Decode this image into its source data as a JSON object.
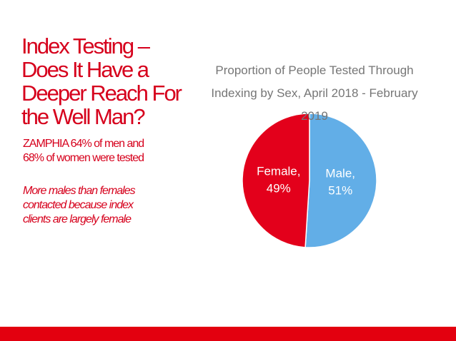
{
  "slide": {
    "title_lines": [
      "Index Testing –",
      "Does It Have a",
      "Deeper Reach For",
      "the Well Man?"
    ],
    "stat_lines": [
      "ZAMPHIA 64% of men and",
      "68% of women were tested"
    ],
    "note_lines": [
      "More males than females",
      "contacted because index",
      "clients are largely female"
    ]
  },
  "colors": {
    "accent": "#d6001c",
    "female": "#e3001b",
    "male": "#62aee7",
    "footer": "#e3000f"
  },
  "chart_data": {
    "type": "pie",
    "title": "Proportion of People Tested Through Indexing by Sex, April 2018 - February 2019",
    "title_lines": [
      "Proportion of People Tested Through",
      "Indexing by Sex, April 2018 - February",
      "2019"
    ],
    "slices": [
      {
        "name": "Male",
        "value": 51,
        "label_lines": [
          "Male,",
          "51%"
        ]
      },
      {
        "name": "Female",
        "value": 49,
        "label_lines": [
          "Female,",
          "49%"
        ]
      }
    ]
  }
}
